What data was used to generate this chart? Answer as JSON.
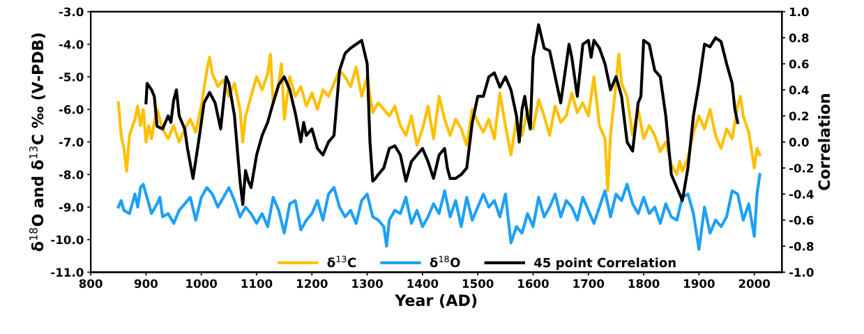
{
  "chart_data": {
    "type": "line",
    "xlabel": "Year (AD)",
    "ylabel": "δ$^{18}$O and δ$^{13}$C ‰ (V-PDB)",
    "y2label": "Correlation",
    "xlim": [
      800,
      2050
    ],
    "xticks": [
      800,
      900,
      1000,
      1100,
      1200,
      1300,
      1400,
      1500,
      1600,
      1700,
      1800,
      1900,
      2000
    ],
    "ylim": [
      -11,
      -3
    ],
    "yticks": [
      {
        "value": -11,
        "label": "-11.0"
      },
      {
        "value": -10,
        "label": "-10.0"
      },
      {
        "value": -9,
        "label": "-9.0"
      },
      {
        "value": -8,
        "label": "-8.0"
      },
      {
        "value": -7,
        "label": "-7.0"
      },
      {
        "value": -6,
        "label": "-6.0"
      },
      {
        "value": -5,
        "label": "-5.0"
      },
      {
        "value": -4,
        "label": "-4.0"
      },
      {
        "value": -3,
        "label": "-3.0"
      }
    ],
    "y2lim": [
      -1,
      1
    ],
    "y2ticks": [
      {
        "value": -1,
        "label": "-1.0"
      },
      {
        "value": -0.8,
        "label": "-0.8"
      },
      {
        "value": -0.6,
        "label": "-0.6"
      },
      {
        "value": -0.4,
        "label": "-0.4"
      },
      {
        "value": -0.2,
        "label": "-0.2"
      },
      {
        "value": 0,
        "label": "0.0"
      },
      {
        "value": 0.2,
        "label": "0.2"
      },
      {
        "value": 0.4,
        "label": "0.4"
      },
      {
        "value": 0.6,
        "label": "0.6"
      },
      {
        "value": 0.8,
        "label": "0.8"
      },
      {
        "value": 1,
        "label": "1.0"
      }
    ],
    "legend": "bottom",
    "grid": false,
    "series": [
      {
        "name": "δ$^{13}$C",
        "color": "#ffc000",
        "x": [
          850,
          855,
          860,
          865,
          870,
          880,
          885,
          890,
          895,
          900,
          905,
          910,
          915,
          920,
          930,
          940,
          950,
          960,
          970,
          980,
          990,
          1000,
          1010,
          1015,
          1020,
          1030,
          1040,
          1050,
          1060,
          1070,
          1075,
          1080,
          1090,
          1100,
          1110,
          1120,
          1125,
          1130,
          1140,
          1145,
          1150,
          1160,
          1170,
          1180,
          1190,
          1200,
          1210,
          1220,
          1230,
          1240,
          1250,
          1260,
          1270,
          1280,
          1290,
          1300,
          1310,
          1320,
          1330,
          1340,
          1350,
          1360,
          1370,
          1380,
          1390,
          1400,
          1410,
          1420,
          1430,
          1440,
          1450,
          1460,
          1470,
          1480,
          1490,
          1500,
          1510,
          1520,
          1530,
          1540,
          1550,
          1560,
          1570,
          1580,
          1590,
          1600,
          1610,
          1620,
          1630,
          1640,
          1650,
          1660,
          1670,
          1680,
          1690,
          1700,
          1710,
          1720,
          1730,
          1735,
          1740,
          1750,
          1755,
          1760,
          1770,
          1780,
          1790,
          1800,
          1810,
          1820,
          1830,
          1840,
          1850,
          1860,
          1865,
          1870,
          1880,
          1890,
          1900,
          1910,
          1920,
          1930,
          1940,
          1950,
          1960,
          1970,
          1975,
          1980,
          1990,
          2000,
          2005,
          2010
        ],
        "values": [
          -5.8,
          -6.8,
          -7.2,
          -7.9,
          -6.8,
          -6.3,
          -5.9,
          -6.5,
          -6.0,
          -7.0,
          -6.5,
          -6.9,
          -6.4,
          -6.0,
          -6.6,
          -6.9,
          -6.5,
          -7.0,
          -6.6,
          -6.3,
          -6.7,
          -5.9,
          -4.8,
          -4.4,
          -4.9,
          -5.3,
          -5.1,
          -5.6,
          -5.2,
          -6.0,
          -7.0,
          -6.2,
          -5.6,
          -5.0,
          -5.4,
          -4.9,
          -4.3,
          -5.8,
          -5.2,
          -4.6,
          -6.3,
          -5.0,
          -5.6,
          -5.3,
          -5.9,
          -5.5,
          -6.0,
          -5.4,
          -5.6,
          -5.2,
          -4.8,
          -5.0,
          -5.3,
          -4.7,
          -5.6,
          -5.0,
          -6.1,
          -5.8,
          -6.0,
          -6.2,
          -5.9,
          -6.5,
          -6.8,
          -6.2,
          -7.1,
          -6.6,
          -5.9,
          -6.9,
          -5.6,
          -6.3,
          -6.8,
          -6.3,
          -6.6,
          -7.1,
          -6.0,
          -6.4,
          -6.7,
          -6.3,
          -6.9,
          -5.5,
          -6.5,
          -7.4,
          -6.3,
          -6.8,
          -6.0,
          -6.6,
          -5.7,
          -6.2,
          -6.8,
          -5.9,
          -6.4,
          -6.2,
          -5.5,
          -6.1,
          -5.8,
          -6.2,
          -5.0,
          -6.5,
          -6.9,
          -8.5,
          -6.8,
          -5.2,
          -4.3,
          -5.2,
          -5.6,
          -6.8,
          -6.0,
          -6.9,
          -6.5,
          -6.8,
          -7.3,
          -7.0,
          -7.7,
          -8.0,
          -7.6,
          -7.9,
          -7.5,
          -6.7,
          -6.2,
          -6.6,
          -6.0,
          -6.8,
          -7.2,
          -6.6,
          -6.9,
          -5.9,
          -5.6,
          -6.2,
          -6.7,
          -7.8,
          -7.2,
          -7.4
        ]
      },
      {
        "name": "δ$^{18}$O",
        "color": "#1ea0f5",
        "x": [
          850,
          855,
          860,
          870,
          880,
          885,
          890,
          895,
          900,
          910,
          920,
          925,
          930,
          940,
          950,
          960,
          970,
          980,
          990,
          1000,
          1010,
          1020,
          1030,
          1040,
          1050,
          1060,
          1070,
          1080,
          1090,
          1100,
          1110,
          1120,
          1130,
          1140,
          1150,
          1160,
          1170,
          1180,
          1190,
          1200,
          1210,
          1220,
          1230,
          1240,
          1250,
          1260,
          1270,
          1280,
          1290,
          1300,
          1310,
          1320,
          1330,
          1335,
          1340,
          1350,
          1360,
          1370,
          1380,
          1390,
          1400,
          1410,
          1420,
          1430,
          1440,
          1450,
          1460,
          1470,
          1480,
          1490,
          1500,
          1510,
          1520,
          1530,
          1540,
          1550,
          1560,
          1570,
          1580,
          1590,
          1600,
          1610,
          1620,
          1630,
          1640,
          1650,
          1660,
          1670,
          1680,
          1690,
          1700,
          1710,
          1720,
          1730,
          1740,
          1750,
          1760,
          1770,
          1780,
          1790,
          1800,
          1810,
          1820,
          1830,
          1840,
          1850,
          1860,
          1870,
          1880,
          1890,
          1900,
          1910,
          1920,
          1930,
          1940,
          1950,
          1960,
          1970,
          1980,
          1990,
          2000,
          2005,
          2010
        ],
        "values": [
          -9.0,
          -8.8,
          -9.1,
          -9.2,
          -8.6,
          -9.0,
          -8.4,
          -8.3,
          -8.6,
          -9.2,
          -8.9,
          -8.7,
          -9.3,
          -9.2,
          -9.5,
          -9.1,
          -8.9,
          -8.7,
          -9.4,
          -8.7,
          -8.4,
          -8.6,
          -9.0,
          -8.7,
          -8.4,
          -8.8,
          -9.3,
          -9.0,
          -9.2,
          -9.5,
          -9.2,
          -9.6,
          -8.7,
          -9.1,
          -9.8,
          -8.9,
          -8.8,
          -9.7,
          -9.4,
          -9.2,
          -8.8,
          -9.4,
          -8.6,
          -8.4,
          -9.0,
          -9.3,
          -9.1,
          -9.5,
          -8.8,
          -8.6,
          -9.3,
          -9.4,
          -9.6,
          -10.2,
          -9.4,
          -9.1,
          -9.2,
          -8.7,
          -9.5,
          -9.1,
          -9.6,
          -9.3,
          -8.9,
          -9.2,
          -8.5,
          -9.3,
          -8.8,
          -9.6,
          -8.7,
          -9.4,
          -9.0,
          -8.6,
          -9.0,
          -8.8,
          -9.3,
          -8.6,
          -10.1,
          -9.6,
          -9.8,
          -9.2,
          -9.6,
          -8.7,
          -9.3,
          -9.0,
          -8.6,
          -9.3,
          -8.8,
          -9.0,
          -9.4,
          -8.7,
          -9.1,
          -9.5,
          -9.0,
          -8.5,
          -9.3,
          -8.6,
          -8.8,
          -8.3,
          -8.9,
          -9.2,
          -8.7,
          -9.2,
          -9.0,
          -9.5,
          -8.9,
          -9.3,
          -9.4,
          -8.7,
          -8.6,
          -9.2,
          -10.3,
          -9.0,
          -9.8,
          -9.4,
          -9.6,
          -9.3,
          -8.5,
          -8.6,
          -9.4,
          -8.9,
          -9.9,
          -8.6,
          -8.0
        ]
      },
      {
        "name": "45 point Correlation",
        "color": "#000000",
        "axis": "y2",
        "x": [
          900,
          902,
          910,
          915,
          920,
          930,
          940,
          945,
          950,
          955,
          960,
          970,
          975,
          985,
          995,
          1005,
          1015,
          1025,
          1035,
          1045,
          1050,
          1060,
          1065,
          1070,
          1075,
          1080,
          1085,
          1090,
          1100,
          1110,
          1120,
          1130,
          1140,
          1150,
          1160,
          1170,
          1180,
          1185,
          1190,
          1200,
          1210,
          1220,
          1230,
          1240,
          1250,
          1260,
          1270,
          1280,
          1290,
          1300,
          1305,
          1310,
          1315,
          1320,
          1330,
          1340,
          1350,
          1360,
          1365,
          1370,
          1380,
          1390,
          1400,
          1410,
          1420,
          1430,
          1440,
          1445,
          1450,
          1460,
          1470,
          1480,
          1490,
          1500,
          1510,
          1520,
          1530,
          1540,
          1550,
          1560,
          1570,
          1575,
          1580,
          1585,
          1590,
          1595,
          1600,
          1610,
          1620,
          1630,
          1640,
          1650,
          1660,
          1665,
          1670,
          1680,
          1690,
          1700,
          1705,
          1710,
          1720,
          1730,
          1740,
          1750,
          1760,
          1770,
          1780,
          1790,
          1795,
          1800,
          1810,
          1820,
          1830,
          1840,
          1850,
          1860,
          1870,
          1880,
          1890,
          1900,
          1910,
          1920,
          1930,
          1940,
          1950,
          1960,
          1965,
          1970
        ],
        "values": [
          0.3,
          0.45,
          0.4,
          0.35,
          0.12,
          0.1,
          0.2,
          0.15,
          0.32,
          0.4,
          0.2,
          0.1,
          -0.05,
          -0.28,
          0.0,
          0.3,
          0.38,
          0.3,
          0.1,
          0.5,
          0.45,
          0.2,
          -0.05,
          -0.3,
          -0.48,
          -0.22,
          -0.3,
          -0.35,
          -0.1,
          0.05,
          0.15,
          0.3,
          0.44,
          0.5,
          0.4,
          0.22,
          0.0,
          0.15,
          0.05,
          0.1,
          -0.05,
          -0.1,
          0.0,
          0.05,
          0.55,
          0.68,
          0.72,
          0.75,
          0.78,
          0.6,
          0.0,
          -0.3,
          -0.28,
          -0.25,
          -0.2,
          -0.05,
          -0.03,
          -0.1,
          -0.2,
          -0.3,
          -0.15,
          -0.1,
          -0.05,
          -0.15,
          -0.28,
          -0.1,
          -0.05,
          -0.2,
          -0.28,
          -0.28,
          -0.25,
          -0.2,
          0.15,
          0.35,
          0.35,
          0.5,
          0.53,
          0.42,
          0.5,
          0.4,
          0.2,
          0.0,
          0.25,
          0.35,
          0.2,
          0.1,
          0.65,
          0.9,
          0.72,
          0.7,
          0.5,
          0.3,
          0.6,
          0.75,
          0.65,
          0.35,
          0.75,
          0.78,
          0.65,
          0.78,
          0.72,
          0.6,
          0.4,
          0.5,
          0.35,
          0.0,
          -0.07,
          0.3,
          0.35,
          0.78,
          0.75,
          0.55,
          0.5,
          0.2,
          -0.25,
          -0.35,
          -0.45,
          -0.2,
          0.2,
          0.45,
          0.75,
          0.73,
          0.8,
          0.77,
          0.6,
          0.45,
          0.25,
          0.15
        ]
      }
    ]
  }
}
